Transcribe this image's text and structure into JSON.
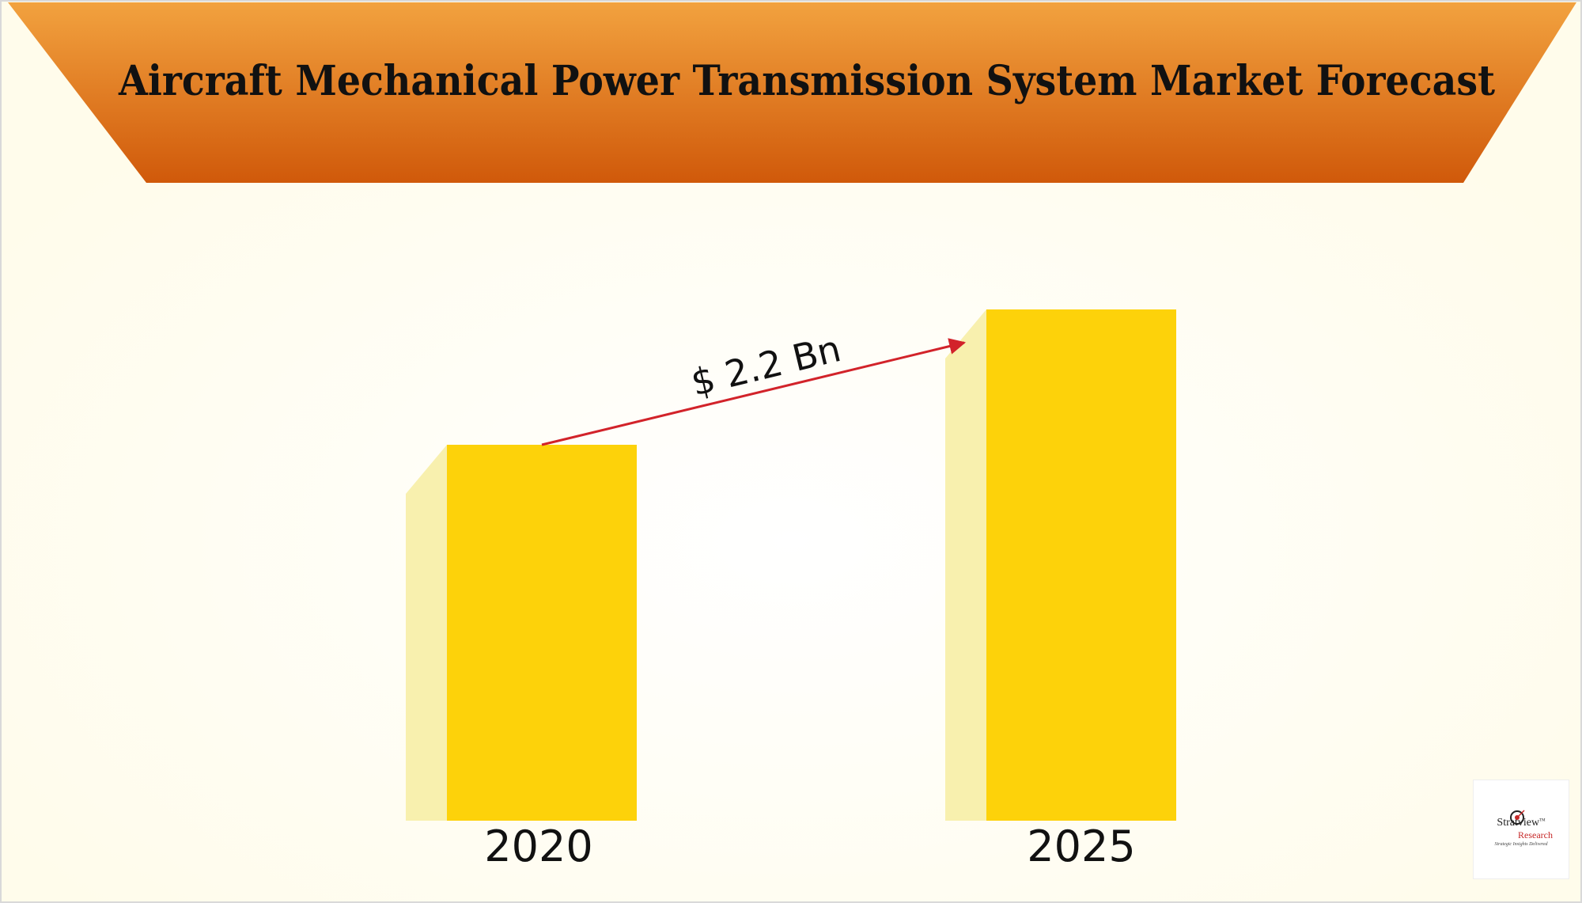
{
  "page": {
    "title": "Aircraft Mechanical Power Transmission System Market Forecast"
  },
  "colors": {
    "banner_top": "#F2A23F",
    "banner_bottom": "#D0590A",
    "bar_front": "#FDD20A",
    "bar_side": "#F8F0AE",
    "arrow": "#D2232A",
    "background": "#FFFDF2"
  },
  "chart_data": {
    "type": "bar",
    "title": "Aircraft Mechanical Power Transmission System Market Forecast",
    "xlabel": "",
    "ylabel": "",
    "categories": [
      "2020",
      "2025"
    ],
    "values": [
      0.5,
      0.68
    ],
    "value_scale": "relative height (unlabeled axis)",
    "ylim": [
      0,
      1
    ],
    "grid": false,
    "legend": "none",
    "annotations": [
      {
        "text": "$ 2.2 Bn",
        "from": "2020",
        "to": "2025",
        "kind": "arrow"
      }
    ]
  },
  "logo": {
    "name": "Stratview",
    "tm": "TM",
    "sub": "Research",
    "tagline": "Strategic Insights Delivered",
    "icon": "target-icon"
  }
}
